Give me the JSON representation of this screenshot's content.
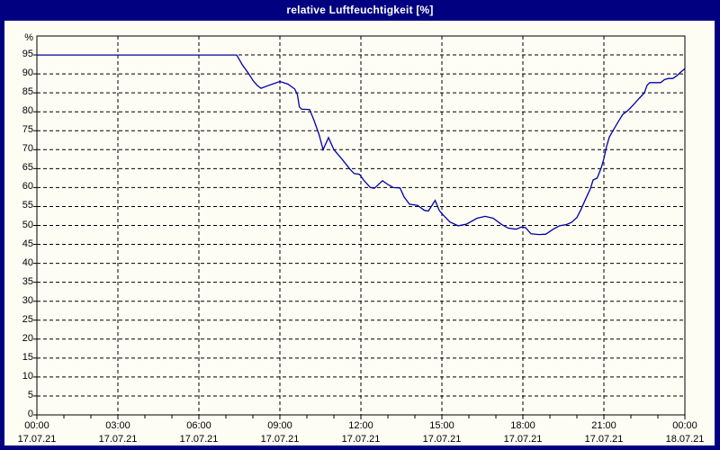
{
  "window": {
    "title": "relative Luftfeuchtigkeit [%]",
    "titlebar_color": "#000080",
    "title_text_color": "#ffffff",
    "content_background": "#fdfdf4"
  },
  "chart_data": {
    "type": "line",
    "title": "relative Luftfeuchtigkeit [%]",
    "ylabel": "%",
    "ylim": [
      0,
      100
    ],
    "yticks": [
      0,
      5,
      10,
      15,
      20,
      25,
      30,
      35,
      40,
      45,
      50,
      55,
      60,
      65,
      70,
      75,
      80,
      85,
      90,
      95
    ],
    "grid": "dashed",
    "grid_color": "#000000",
    "legend_position": "none",
    "x_range_hours": [
      0,
      24
    ],
    "xticks": [
      {
        "hour": 0,
        "time": "00:00",
        "date": "17.07.21"
      },
      {
        "hour": 3,
        "time": "03:00",
        "date": "17.07.21"
      },
      {
        "hour": 6,
        "time": "06:00",
        "date": "17.07.21"
      },
      {
        "hour": 9,
        "time": "09:00",
        "date": "17.07.21"
      },
      {
        "hour": 12,
        "time": "12:00",
        "date": "17.07.21"
      },
      {
        "hour": 15,
        "time": "15:00",
        "date": "17.07.21"
      },
      {
        "hour": 18,
        "time": "18:00",
        "date": "17.07.21"
      },
      {
        "hour": 21,
        "time": "21:00",
        "date": "17.07.21"
      },
      {
        "hour": 24,
        "time": "00:00",
        "date": "18.07.21"
      }
    ],
    "series": [
      {
        "name": "relative Luftfeuchtigkeit",
        "unit": "%",
        "color": "#0000a8",
        "points_hour_value": [
          [
            0,
            95
          ],
          [
            0.5,
            95
          ],
          [
            1,
            95
          ],
          [
            1.5,
            95
          ],
          [
            2,
            95
          ],
          [
            2.5,
            95
          ],
          [
            3,
            95
          ],
          [
            3.5,
            95
          ],
          [
            4,
            95
          ],
          [
            4.5,
            95
          ],
          [
            5,
            95
          ],
          [
            5.5,
            95
          ],
          [
            6,
            95
          ],
          [
            6.5,
            95
          ],
          [
            7,
            95
          ],
          [
            7.4,
            95
          ],
          [
            7.6,
            92.5
          ],
          [
            7.85,
            90
          ],
          [
            8.0,
            88.3
          ],
          [
            8.15,
            87
          ],
          [
            8.3,
            86.2
          ],
          [
            8.6,
            87
          ],
          [
            9.0,
            88
          ],
          [
            9.3,
            87.3
          ],
          [
            9.55,
            86
          ],
          [
            9.65,
            84.5
          ],
          [
            9.72,
            81.3
          ],
          [
            9.8,
            80.7
          ],
          [
            10.1,
            80.6
          ],
          [
            10.25,
            78
          ],
          [
            10.45,
            74
          ],
          [
            10.6,
            70
          ],
          [
            10.8,
            73.2
          ],
          [
            11.0,
            70
          ],
          [
            11.3,
            67.5
          ],
          [
            11.6,
            64.8
          ],
          [
            11.75,
            63.7
          ],
          [
            11.95,
            63.5
          ],
          [
            12.1,
            62
          ],
          [
            12.35,
            60
          ],
          [
            12.5,
            59.8
          ],
          [
            12.8,
            61.8
          ],
          [
            13.0,
            60.8
          ],
          [
            13.2,
            60
          ],
          [
            13.45,
            59.9
          ],
          [
            13.6,
            57.5
          ],
          [
            13.8,
            55.6
          ],
          [
            14.1,
            55.3
          ],
          [
            14.35,
            54
          ],
          [
            14.5,
            53.8
          ],
          [
            14.75,
            56.6
          ],
          [
            14.9,
            54
          ],
          [
            15.0,
            53.1
          ],
          [
            15.3,
            50.9
          ],
          [
            15.6,
            49.9
          ],
          [
            15.9,
            50.3
          ],
          [
            16.3,
            51.9
          ],
          [
            16.6,
            52.4
          ],
          [
            16.9,
            51.9
          ],
          [
            17.2,
            50.3
          ],
          [
            17.45,
            49.3
          ],
          [
            17.75,
            49
          ],
          [
            17.95,
            49.6
          ],
          [
            18.1,
            49.4
          ],
          [
            18.3,
            47.8
          ],
          [
            18.6,
            47.6
          ],
          [
            18.85,
            47.7
          ],
          [
            19.1,
            48.9
          ],
          [
            19.35,
            49.9
          ],
          [
            19.6,
            50.2
          ],
          [
            19.8,
            50.8
          ],
          [
            20.0,
            52.1
          ],
          [
            20.15,
            54.2
          ],
          [
            20.3,
            56.6
          ],
          [
            20.5,
            59.7
          ],
          [
            20.6,
            62
          ],
          [
            20.75,
            62.5
          ],
          [
            20.9,
            65.2
          ],
          [
            21.0,
            67.6
          ],
          [
            21.1,
            70.9
          ],
          [
            21.2,
            73.3
          ],
          [
            21.35,
            75.2
          ],
          [
            21.55,
            77.6
          ],
          [
            21.7,
            79.3
          ],
          [
            21.9,
            80.4
          ],
          [
            22.1,
            81.9
          ],
          [
            22.3,
            83.5
          ],
          [
            22.5,
            85
          ],
          [
            22.6,
            87
          ],
          [
            22.7,
            87.7
          ],
          [
            23.1,
            87.7
          ],
          [
            23.25,
            88.5
          ],
          [
            23.4,
            88.8
          ],
          [
            23.55,
            88.8
          ],
          [
            23.7,
            89.5
          ],
          [
            23.85,
            90.5
          ],
          [
            24,
            91.4
          ]
        ]
      }
    ]
  }
}
